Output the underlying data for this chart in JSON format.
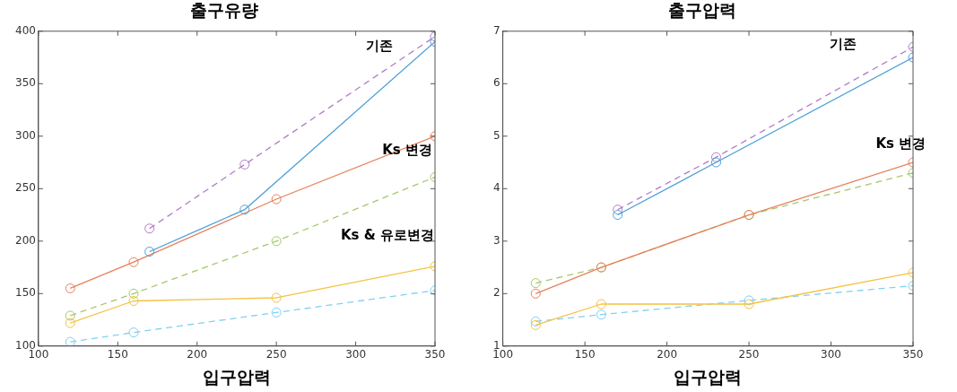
{
  "chart_data": [
    {
      "type": "line",
      "title": "출구유량",
      "xlabel": "입구압력",
      "xlim": [
        100,
        350
      ],
      "xticks": [
        100,
        150,
        200,
        250,
        300,
        350
      ],
      "ylim": [
        100,
        400
      ],
      "yticks": [
        100,
        150,
        200,
        250,
        300,
        350,
        400
      ],
      "grid": false,
      "legend": false,
      "marker": "circle",
      "series": [
        {
          "color": "#4a9fd8",
          "line_style": "solid",
          "x": [
            170,
            230,
            350
          ],
          "values": [
            190,
            230,
            390
          ]
        },
        {
          "color": "#b07cc6",
          "line_style": "dashed",
          "x": [
            170,
            230,
            350
          ],
          "values": [
            212,
            273,
            395
          ]
        },
        {
          "color": "#e8805a",
          "line_style": "solid",
          "x": [
            120,
            160,
            250,
            350
          ],
          "values": [
            155,
            180,
            240,
            300
          ]
        },
        {
          "color": "#a4c86a",
          "line_style": "dashed",
          "x": [
            120,
            160,
            250,
            350
          ],
          "values": [
            129,
            150,
            200,
            261
          ]
        },
        {
          "color": "#f5c242",
          "line_style": "solid",
          "x": [
            120,
            160,
            250,
            350
          ],
          "values": [
            122,
            143,
            146,
            176
          ]
        },
        {
          "color": "#7fd0f4",
          "line_style": "dashed",
          "x": [
            120,
            160,
            250,
            350
          ],
          "values": [
            104,
            113,
            132,
            153
          ]
        }
      ],
      "annotations": [
        "기존",
        "Ks 변경",
        "Ks & 유로변경"
      ]
    },
    {
      "type": "line",
      "title": "출구압력",
      "xlabel": "입구압력",
      "xlim": [
        100,
        350
      ],
      "xticks": [
        100,
        150,
        200,
        250,
        300,
        350
      ],
      "ylim": [
        1,
        7
      ],
      "yticks": [
        1,
        2,
        3,
        4,
        5,
        6,
        7
      ],
      "grid": false,
      "legend": false,
      "marker": "circle",
      "series": [
        {
          "color": "#4a9fd8",
          "line_style": "solid",
          "x": [
            170,
            230,
            350
          ],
          "values": [
            3.5,
            4.5,
            6.5
          ]
        },
        {
          "color": "#b07cc6",
          "line_style": "dashed",
          "x": [
            170,
            230,
            350
          ],
          "values": [
            3.6,
            4.6,
            6.7
          ]
        },
        {
          "color": "#e8805a",
          "line_style": "solid",
          "x": [
            120,
            160,
            250,
            350
          ],
          "values": [
            2.0,
            2.5,
            3.5,
            4.5
          ]
        },
        {
          "color": "#a4c86a",
          "line_style": "dashed",
          "x": [
            120,
            160,
            250,
            350
          ],
          "values": [
            2.2,
            2.5,
            3.5,
            4.3
          ]
        },
        {
          "color": "#f5c242",
          "line_style": "solid",
          "x": [
            120,
            160,
            250,
            350
          ],
          "values": [
            1.4,
            1.8,
            1.8,
            2.4
          ]
        },
        {
          "color": "#7fd0f4",
          "line_style": "dashed",
          "x": [
            120,
            160,
            250,
            350
          ],
          "values": [
            1.47,
            1.6,
            1.87,
            2.15
          ]
        }
      ],
      "annotations": [
        "기존",
        "Ks 변경"
      ]
    }
  ]
}
